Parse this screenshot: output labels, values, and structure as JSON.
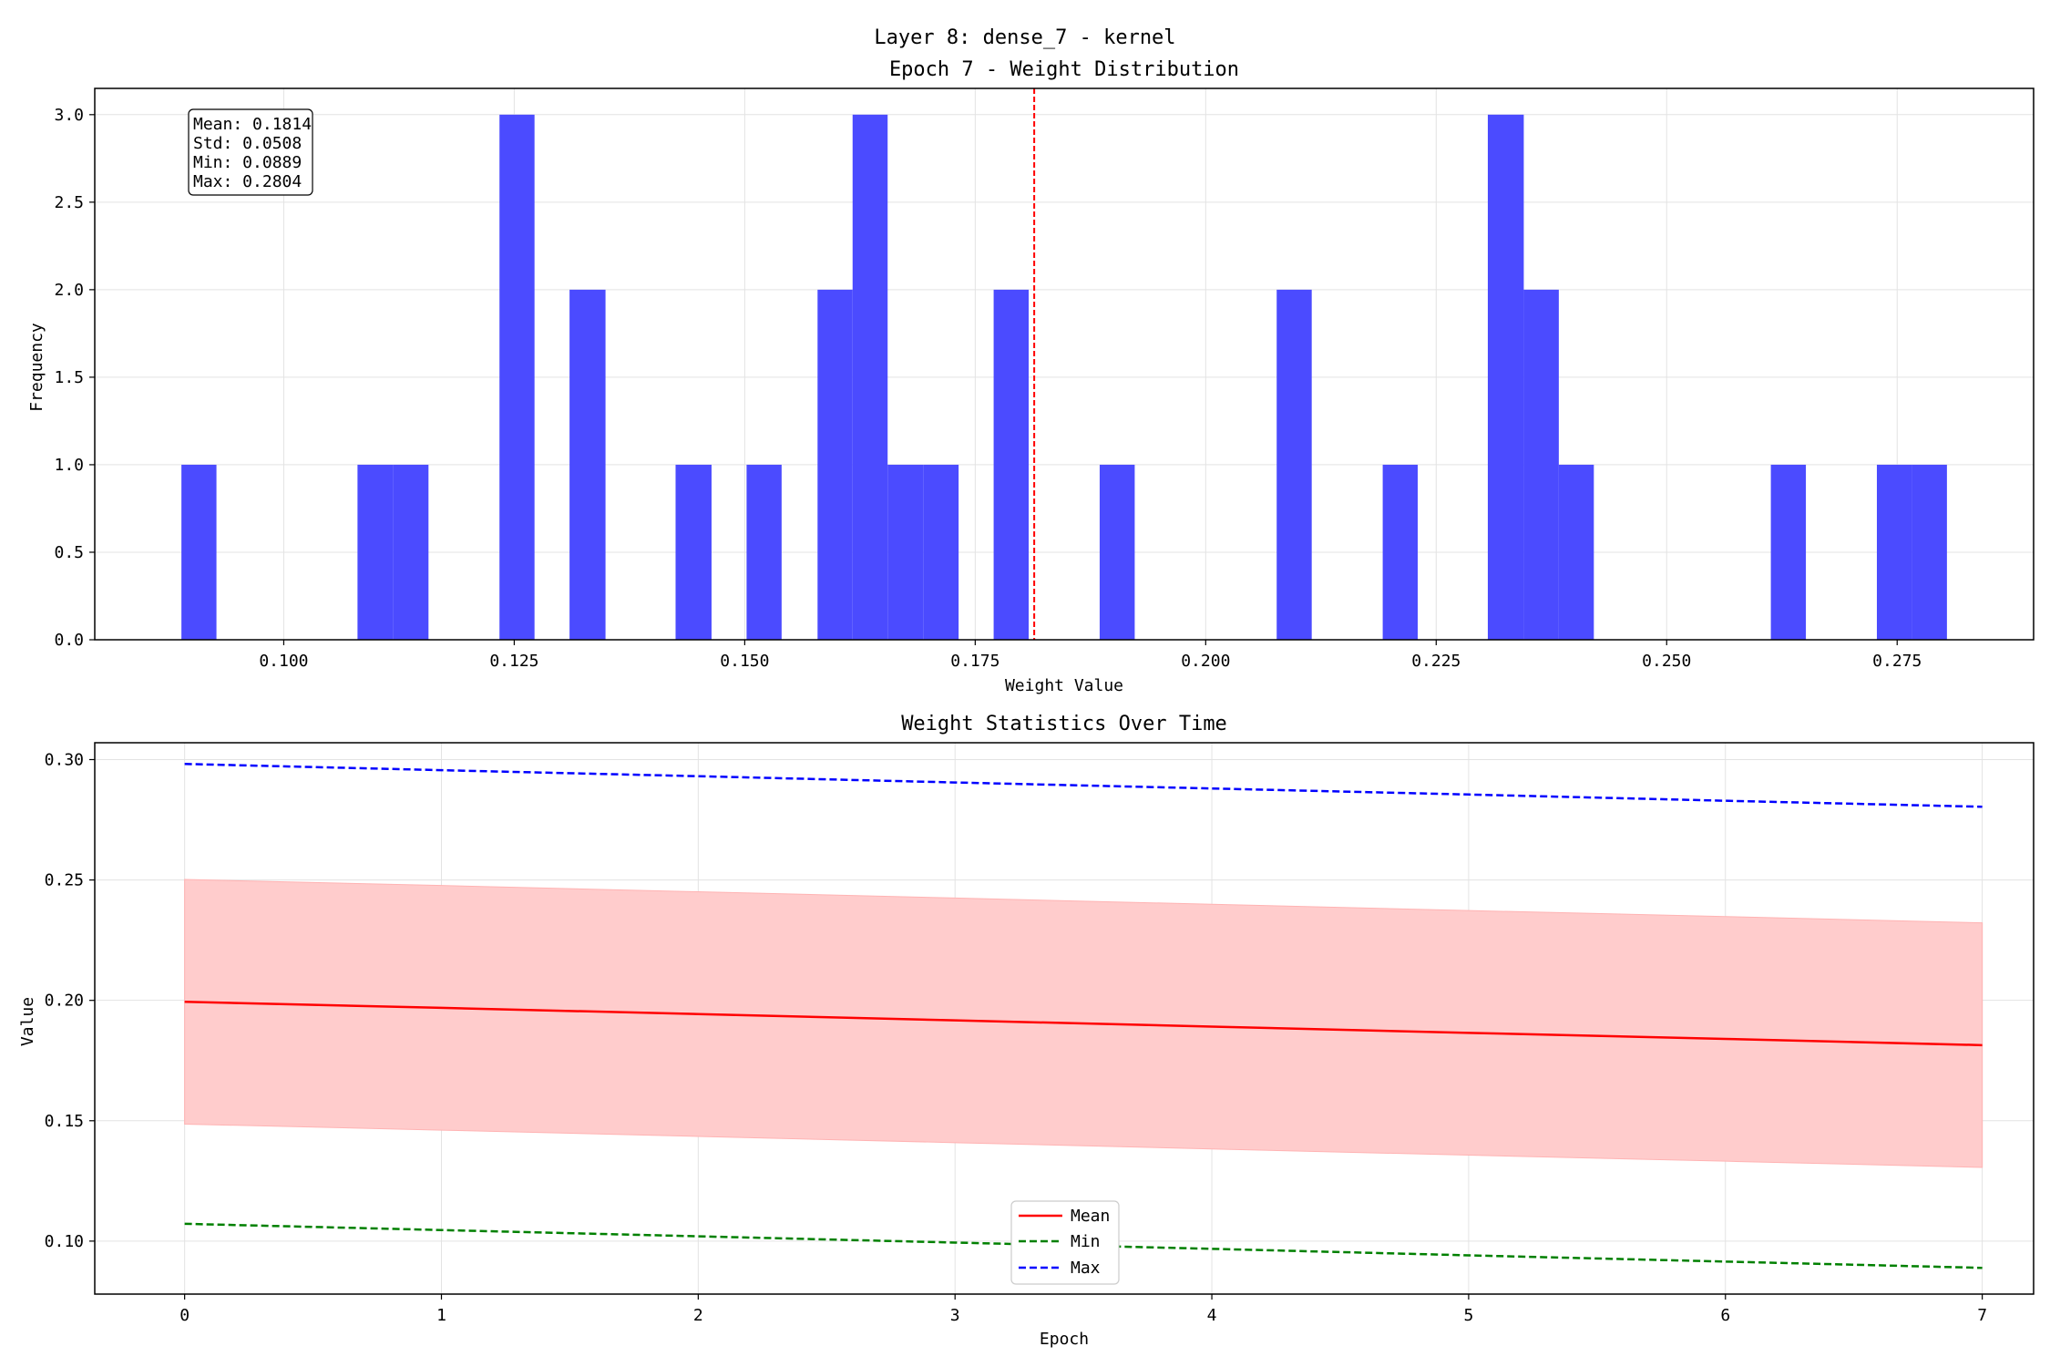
{
  "figure": {
    "suptitle": "Layer 8: dense_7 - kernel"
  },
  "colors": {
    "hist": "#4b4bff",
    "mean_line": "#ff0000",
    "std_band": "#ffcccc",
    "min_line": "#008000",
    "max_line": "#0000ff",
    "grid": "#e3e3e3"
  },
  "chart_data": [
    {
      "type": "bar",
      "title": "Epoch 7 - Weight Distribution",
      "xlabel": "Weight Value",
      "ylabel": "Frequency",
      "xlim": [
        0.0795,
        0.2898
      ],
      "ylim": [
        0,
        3.15
      ],
      "xticks": [
        0.1,
        0.125,
        0.15,
        0.175,
        0.2,
        0.225,
        0.25,
        0.275
      ],
      "xtick_labels": [
        "0.100",
        "0.125",
        "0.150",
        "0.175",
        "0.200",
        "0.225",
        "0.250",
        "0.275"
      ],
      "yticks": [
        0,
        0.5,
        1,
        1.5,
        2,
        2.5,
        3
      ],
      "ytick_labels": [
        "0.0",
        "0.5",
        "1.0",
        "1.5",
        "2.0",
        "2.5",
        "3.0"
      ],
      "bin_start": 0.0889,
      "bin_width": 0.00383,
      "counts": [
        1,
        0,
        0,
        0,
        0,
        1,
        1,
        0,
        0,
        0,
        3,
        0,
        2,
        0,
        0,
        0,
        1,
        0,
        1,
        0,
        0,
        2,
        3,
        1,
        1,
        0,
        0,
        2,
        0,
        0,
        0,
        0,
        0,
        0,
        0,
        0,
        0,
        1,
        0,
        0,
        0,
        0,
        0,
        0,
        0,
        0,
        0,
        0,
        0,
        0,
        0,
        0,
        0,
        0,
        0,
        0,
        0,
        0,
        0,
        0,
        0,
        0,
        2,
        0,
        0,
        1,
        0,
        0,
        0,
        0,
        0,
        0,
        0,
        0,
        0,
        0,
        0,
        0,
        1,
        0,
        0,
        0,
        1,
        0,
        0,
        0,
        0,
        0,
        0,
        0,
        0,
        0,
        1,
        0,
        0,
        0,
        0,
        0,
        0,
        0,
        0,
        0,
        0,
        0,
        0,
        0,
        0,
        0,
        0,
        0,
        0,
        0,
        0,
        0,
        0,
        0,
        0,
        0,
        0,
        0,
        0,
        0,
        0,
        0,
        0,
        0,
        0,
        0,
        0,
        0,
        0,
        0,
        0,
        0,
        0,
        0,
        0,
        0,
        0,
        0,
        0,
        0,
        0,
        0,
        0,
        0,
        0,
        0,
        0,
        0,
        0,
        0,
        0,
        0,
        0,
        0,
        0,
        0,
        0,
        0,
        0,
        0,
        0,
        0,
        0,
        0,
        0,
        0,
        0
      ],
      "bins": [
        {
          "x0": 0.0889,
          "x1": 0.0927,
          "count": 1
        },
        {
          "x0": 0.108,
          "x1": 0.1119,
          "count": 1
        },
        {
          "x0": 0.1119,
          "x1": 0.1157,
          "count": 1
        },
        {
          "x0": 0.1234,
          "x1": 0.1272,
          "count": 3
        },
        {
          "x0": 0.131,
          "x1": 0.1349,
          "count": 2
        },
        {
          "x0": 0.1425,
          "x1": 0.1464,
          "count": 1
        },
        {
          "x0": 0.1502,
          "x1": 0.154,
          "count": 1
        },
        {
          "x0": 0.1579,
          "x1": 0.1617,
          "count": 2
        },
        {
          "x0": 0.1617,
          "x1": 0.1655,
          "count": 3
        },
        {
          "x0": 0.1655,
          "x1": 0.1694,
          "count": 1
        },
        {
          "x0": 0.1694,
          "x1": 0.1732,
          "count": 1
        },
        {
          "x0": 0.177,
          "x1": 0.1808,
          "count": 2
        },
        {
          "x0": 0.1885,
          "x1": 0.1923,
          "count": 1
        },
        {
          "x0": 0.2077,
          "x1": 0.2115,
          "count": 2
        },
        {
          "x0": 0.2192,
          "x1": 0.223,
          "count": 1
        },
        {
          "x0": 0.2306,
          "x1": 0.2345,
          "count": 3
        },
        {
          "x0": 0.2345,
          "x1": 0.2383,
          "count": 2
        },
        {
          "x0": 0.2383,
          "x1": 0.2421,
          "count": 1
        },
        {
          "x0": 0.2613,
          "x1": 0.2651,
          "count": 1
        },
        {
          "x0": 0.2728,
          "x1": 0.2766,
          "count": 1
        },
        {
          "x0": 0.2766,
          "x1": 0.2804,
          "count": 1
        }
      ],
      "mean_line": 0.1814,
      "stats_box": [
        "Mean: 0.1814",
        "Std: 0.0508",
        "Min: 0.0889",
        "Max: 0.2804"
      ],
      "grid": true
    },
    {
      "type": "line",
      "title": "Weight Statistics Over Time",
      "xlabel": "Epoch",
      "ylabel": "Value",
      "xlim": [
        -0.35,
        7.2
      ],
      "ylim": [
        0.078,
        0.307
      ],
      "xticks": [
        0,
        1,
        2,
        3,
        4,
        5,
        6,
        7
      ],
      "xtick_labels": [
        "0",
        "1",
        "2",
        "3",
        "4",
        "5",
        "6",
        "7"
      ],
      "yticks": [
        0.1,
        0.15,
        0.2,
        0.25,
        0.3
      ],
      "ytick_labels": [
        "0.10",
        "0.15",
        "0.20",
        "0.25",
        "0.30"
      ],
      "x": [
        0,
        1,
        2,
        3,
        4,
        5,
        6,
        7
      ],
      "series": [
        {
          "name": "Mean",
          "style": "solid",
          "values": [
            0.1994,
            0.1969,
            0.1943,
            0.1917,
            0.1891,
            0.1865,
            0.184,
            0.1814
          ]
        },
        {
          "name": "Min",
          "style": "dashed",
          "values": [
            0.1072,
            0.1046,
            0.102,
            0.0994,
            0.0968,
            0.0941,
            0.0915,
            0.0889
          ]
        },
        {
          "name": "Max",
          "style": "dashed",
          "values": [
            0.2982,
            0.2956,
            0.2931,
            0.2905,
            0.288,
            0.2855,
            0.2829,
            0.2804
          ]
        }
      ],
      "std_band": {
        "lower": [
          0.1486,
          0.1461,
          0.1435,
          0.1409,
          0.1383,
          0.1357,
          0.1332,
          0.1306
        ],
        "upper": [
          0.2502,
          0.2477,
          0.2451,
          0.2425,
          0.2399,
          0.2373,
          0.2348,
          0.2322
        ]
      },
      "legend": {
        "placement": "lower-center",
        "entries": [
          "Mean",
          "Min",
          "Max"
        ]
      },
      "grid": true
    }
  ]
}
